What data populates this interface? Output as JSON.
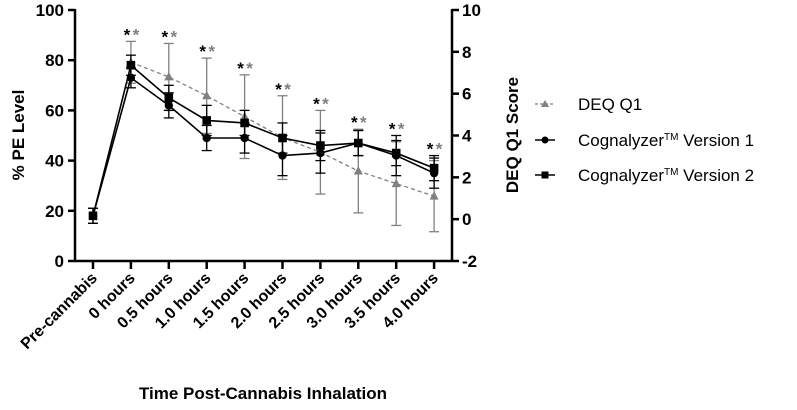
{
  "chart_data": {
    "type": "line",
    "xlabel": "Time Post-Cannabis Inhalation",
    "ylabel": "% PE Level",
    "ylabel_right": "DEQ Q1 Score",
    "ylim": [
      0,
      100
    ],
    "ylim_right": [
      -2,
      10
    ],
    "yticks": [
      "0",
      "20",
      "40",
      "60",
      "80",
      "100"
    ],
    "yticks_right": [
      "-2",
      "0",
      "2",
      "4",
      "6",
      "8",
      "10"
    ],
    "yticks_values": [
      0,
      20,
      40,
      60,
      80,
      100
    ],
    "yticks_right_values": [
      -2,
      0,
      2,
      4,
      6,
      8,
      10
    ],
    "categories": [
      "Pre-cannabis",
      "0 hours",
      "0.5 hours",
      "1.0 hours",
      "1.5 hours",
      "2.0 hours",
      "2.5 hours",
      "3.0 hours",
      "3.5 hours",
      "4.0 hours"
    ],
    "legend_position": "right",
    "series": [
      {
        "name": "DEQ Q1",
        "axis": "right",
        "marker": "triangle",
        "style": "dashed",
        "color": "#808080",
        "values": [
          null,
          7.5,
          6.8,
          5.9,
          4.9,
          3.9,
          3.2,
          2.3,
          1.7,
          1.1
        ],
        "errors": [
          null,
          1.0,
          1.6,
          1.8,
          2.0,
          2.0,
          2.0,
          2.0,
          2.0,
          1.7
        ]
      },
      {
        "name": "Cognalyzer™ Version 1",
        "name_main": "Cognalyzer",
        "name_tm": "TM",
        "name_rest": " Version 1",
        "axis": "left",
        "marker": "circle",
        "style": "solid",
        "color": "#000000",
        "values": [
          18,
          73,
          62,
          49,
          49,
          42,
          43,
          47,
          42,
          35
        ],
        "errors": [
          3,
          4,
          5,
          5,
          6,
          8,
          8,
          5,
          8,
          6
        ]
      },
      {
        "name": "Cognalyzer™ Version 2",
        "name_main": "Cognalyzer",
        "name_tm": "TM",
        "name_rest": " Version 2",
        "axis": "left",
        "marker": "square",
        "style": "solid",
        "color": "#000000",
        "values": [
          18,
          78,
          65,
          56,
          55,
          49,
          46,
          47,
          43,
          37
        ],
        "errors": [
          3,
          4,
          5,
          6,
          5,
          6,
          6,
          5,
          5,
          5
        ]
      }
    ],
    "annotations": {
      "symbol": "*",
      "colors": [
        "#000000",
        "#808080"
      ],
      "categories": [
        "0 hours",
        "0.5 hours",
        "1.0 hours",
        "1.5 hours",
        "2.0 hours",
        "2.5 hours",
        "3.0 hours",
        "3.5 hours",
        "4.0 hours"
      ]
    }
  }
}
